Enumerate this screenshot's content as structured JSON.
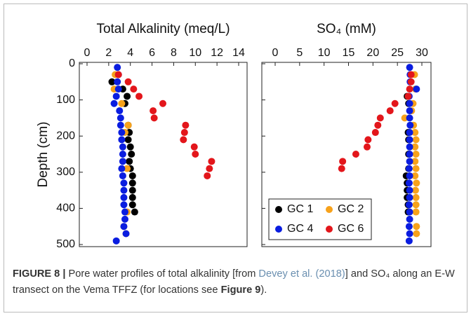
{
  "chart_data": [
    {
      "type": "scatter",
      "title": "Total Alkalinity (meq/L)",
      "ylabel": "Depth (cm)",
      "xlim": [
        0,
        14
      ],
      "xticks": [
        0,
        2,
        4,
        6,
        8,
        10,
        12,
        14
      ],
      "ylim": [
        0,
        500
      ],
      "yticks": [
        0,
        100,
        200,
        300,
        400,
        500
      ],
      "y_inverted": true,
      "xaxis_position": "top",
      "series": [
        {
          "color": "#000000",
          "x": [
            2.3,
            3.3,
            3.7,
            3.5,
            3.8,
            3.9,
            3.8,
            4.0,
            4.1,
            3.9,
            4.0,
            4.2,
            4.2,
            4.2,
            4.2,
            4.2,
            4.4
          ],
          "values": [
            50,
            70,
            90,
            110,
            170,
            190,
            210,
            230,
            250,
            270,
            290,
            310,
            330,
            350,
            370,
            390,
            410
          ]
        },
        {
          "color": "#f7a21b",
          "x": [
            2.6,
            2.5,
            3.2,
            3.8,
            3.5,
            3.7,
            3.7,
            3.4,
            3.6
          ],
          "values": [
            30,
            70,
            110,
            170,
            190,
            290,
            410,
            450,
            470
          ]
        },
        {
          "color": "#0a1de0",
          "x": [
            2.8,
            2.9,
            2.8,
            2.9,
            2.7,
            2.5,
            3.0,
            3.1,
            3.1,
            3.2,
            3.2,
            3.3,
            3.3,
            3.3,
            3.2,
            3.3,
            3.4,
            3.4,
            3.4,
            3.4,
            3.5,
            3.5,
            3.4,
            3.6,
            2.7
          ],
          "values": [
            10,
            30,
            50,
            70,
            90,
            110,
            130,
            150,
            170,
            190,
            210,
            230,
            250,
            270,
            290,
            310,
            330,
            350,
            370,
            390,
            410,
            430,
            450,
            470,
            490
          ]
        },
        {
          "color": "#e3161b",
          "x": [
            2.9,
            3.8,
            4.3,
            4.8,
            7.0,
            6.1,
            6.2,
            9.1,
            9.0,
            8.9,
            9.9,
            10.0,
            11.5,
            11.3,
            11.1
          ],
          "values": [
            30,
            50,
            70,
            90,
            110,
            130,
            150,
            170,
            190,
            210,
            230,
            250,
            270,
            290,
            310
          ]
        }
      ]
    },
    {
      "type": "scatter",
      "title": "SO₄ (mM)",
      "xlim": [
        0,
        30
      ],
      "xticks": [
        0,
        5,
        10,
        15,
        20,
        25,
        30
      ],
      "ylim": [
        0,
        500
      ],
      "yticks": [
        0,
        100,
        200,
        300,
        400,
        500
      ],
      "y_inverted": true,
      "xaxis_position": "top",
      "legend": "lower left",
      "series": [
        {
          "name": "GC 1",
          "color": "#000000",
          "x": [
            27.0,
            27.3,
            27.2,
            27.3,
            27.3,
            27.3,
            26.8,
            27.0,
            27.0,
            27.0,
            27.2,
            27.2
          ],
          "values": [
            90,
            110,
            190,
            210,
            250,
            290,
            310,
            330,
            350,
            370,
            390,
            410
          ]
        },
        {
          "name": "GC 2",
          "color": "#f7a21b",
          "x": [
            28.5,
            28.7,
            28.2,
            27.9,
            26.5,
            28.3,
            28.6,
            28.8,
            28.6,
            28.8,
            28.6,
            28.8,
            28.6,
            28.9,
            28.7,
            28.8,
            28.8,
            28.8,
            28.9,
            28.9
          ],
          "values": [
            30,
            70,
            110,
            130,
            150,
            170,
            190,
            210,
            230,
            250,
            270,
            290,
            310,
            330,
            350,
            370,
            390,
            410,
            450,
            470
          ]
        },
        {
          "name": "GC 4",
          "color": "#0a1de0",
          "x": [
            27.5,
            27.6,
            27.6,
            28.9,
            27.4,
            27.5,
            27.5,
            27.5,
            27.6,
            27.5,
            27.5,
            27.5,
            27.5,
            27.5,
            27.4,
            27.5,
            27.4,
            27.5,
            27.5,
            27.4,
            27.5,
            27.5,
            27.4,
            27.5,
            27.4
          ],
          "values": [
            10,
            30,
            50,
            70,
            90,
            110,
            130,
            150,
            170,
            190,
            210,
            230,
            250,
            270,
            290,
            310,
            330,
            350,
            370,
            390,
            410,
            430,
            450,
            470,
            490
          ]
        },
        {
          "name": "GC 6",
          "color": "#e3161b",
          "x": [
            27.8,
            27.8,
            27.5,
            27.2,
            24.5,
            23.5,
            21.5,
            21.0,
            20.5,
            19.0,
            18.8,
            16.5,
            13.8,
            13.6
          ],
          "values": [
            30,
            50,
            70,
            90,
            110,
            130,
            150,
            170,
            190,
            210,
            230,
            250,
            270,
            290
          ]
        }
      ]
    }
  ],
  "caption": {
    "label": "FIGURE 8 |",
    "text1": " Pore water profiles of total alkalinity [from ",
    "link": "Devey et al. (2018)",
    "text2": "] and SO₄ along an E-W transect on the Vema TFFZ (for locations see ",
    "ref": "Figure 9",
    "text3": ")."
  }
}
